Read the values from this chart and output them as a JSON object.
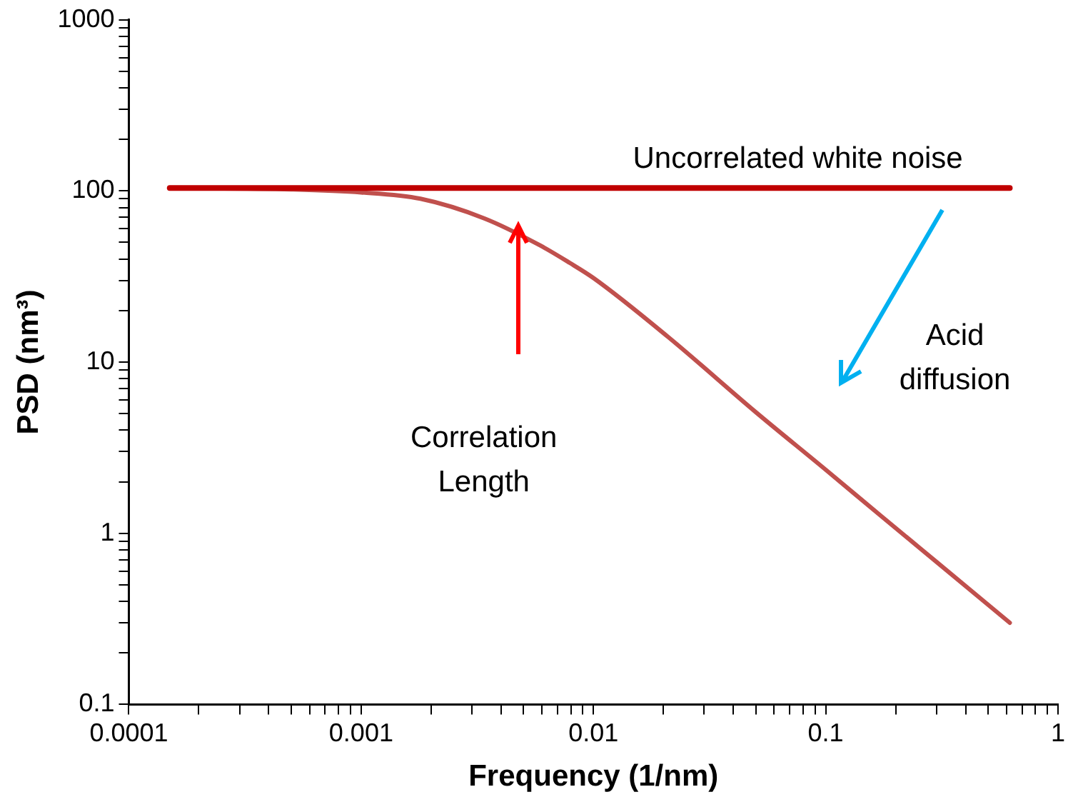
{
  "chart_data": {
    "type": "line",
    "xlabel": "Frequency (1/nm)",
    "ylabel": "PSD (nm³)",
    "log": "xy",
    "grid": false,
    "legend": false,
    "marker": "none",
    "line_style": "solid",
    "xlim": [
      0.0001,
      1
    ],
    "ylim": [
      0.1,
      1000
    ],
    "xticks": [
      0.0001,
      {
        "value": 0.0002,
        "label": null
      },
      {
        "value": 0.0003,
        "label": null
      },
      {
        "value": 0.0004,
        "label": null
      },
      {
        "value": 0.0005,
        "label": null
      },
      {
        "value": 0.0006,
        "label": null
      },
      {
        "value": 0.0007,
        "label": null
      },
      {
        "value": 0.0008,
        "label": null
      },
      {
        "value": 0.0009,
        "label": null
      },
      0.001,
      {
        "value": 0.002,
        "label": null
      },
      {
        "value": 0.003,
        "label": null
      },
      {
        "value": 0.004,
        "label": null
      },
      {
        "value": 0.005,
        "label": null
      },
      {
        "value": 0.006,
        "label": null
      },
      {
        "value": 0.007,
        "label": null
      },
      {
        "value": 0.008,
        "label": null
      },
      {
        "value": 0.009,
        "label": null
      },
      0.01,
      {
        "value": 0.02,
        "label": null
      },
      {
        "value": 0.03,
        "label": null
      },
      {
        "value": 0.04,
        "label": null
      },
      {
        "value": 0.05,
        "label": null
      },
      {
        "value": 0.06,
        "label": null
      },
      {
        "value": 0.07,
        "label": null
      },
      {
        "value": 0.08,
        "label": null
      },
      {
        "value": 0.09,
        "label": null
      },
      0.1,
      {
        "value": 0.2,
        "label": null
      },
      {
        "value": 0.3,
        "label": null
      },
      {
        "value": 0.4,
        "label": null
      },
      {
        "value": 0.5,
        "label": null
      },
      {
        "value": 0.6,
        "label": null
      },
      {
        "value": 0.7,
        "label": null
      },
      {
        "value": 0.8,
        "label": null
      },
      {
        "value": 0.9,
        "label": null
      },
      1
    ],
    "yticks": [
      0.1,
      {
        "value": 0.2,
        "label": null
      },
      {
        "value": 0.3,
        "label": null
      },
      {
        "value": 0.4,
        "label": null
      },
      {
        "value": 0.5,
        "label": null
      },
      {
        "value": 0.6,
        "label": null
      },
      {
        "value": 0.7,
        "label": null
      },
      {
        "value": 0.8,
        "label": null
      },
      {
        "value": 0.9,
        "label": null
      },
      1,
      {
        "value": 2,
        "label": null
      },
      {
        "value": 3,
        "label": null
      },
      {
        "value": 4,
        "label": null
      },
      {
        "value": 5,
        "label": null
      },
      {
        "value": 6,
        "label": null
      },
      {
        "value": 7,
        "label": null
      },
      {
        "value": 8,
        "label": null
      },
      {
        "value": 9,
        "label": null
      },
      10,
      {
        "value": 20,
        "label": null
      },
      {
        "value": 30,
        "label": null
      },
      {
        "value": 40,
        "label": null
      },
      {
        "value": 50,
        "label": null
      },
      {
        "value": 60,
        "label": null
      },
      {
        "value": 70,
        "label": null
      },
      {
        "value": 80,
        "label": null
      },
      {
        "value": 90,
        "label": null
      },
      100,
      {
        "value": 200,
        "label": null
      },
      {
        "value": 300,
        "label": null
      },
      {
        "value": 400,
        "label": null
      },
      {
        "value": 500,
        "label": null
      },
      {
        "value": 600,
        "label": null
      },
      {
        "value": 700,
        "label": null
      },
      {
        "value": 800,
        "label": null
      },
      {
        "value": 900,
        "label": null
      },
      1000
    ],
    "series": [
      {
        "color": "#c00000",
        "x": [
          0.00015,
          0.62
        ],
        "values": [
          104,
          104
        ]
      },
      {
        "color": "#c0504d",
        "x": [
          0.00015,
          0.0005,
          0.001,
          0.0018,
          0.0034,
          0.0059,
          0.0079,
          0.01,
          0.021,
          0.05,
          0.1,
          0.172,
          0.3,
          0.62
        ],
        "values": [
          104,
          102,
          98,
          90,
          69,
          48,
          38,
          31,
          14,
          5.1,
          2.35,
          1.27,
          0.68,
          0.3
        ]
      }
    ],
    "annotations": [
      "Uncorrelated white noise",
      "Correlation\nLength",
      "Acid\ndiffusion"
    ]
  }
}
